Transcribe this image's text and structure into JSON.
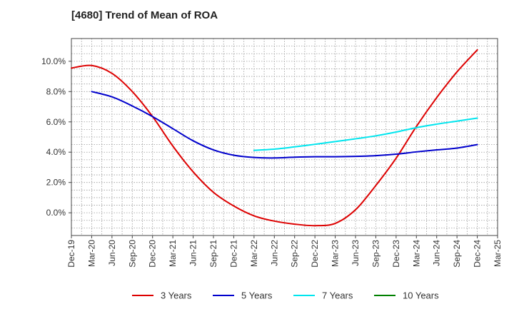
{
  "chart_data": {
    "type": "line",
    "title": "[4680]  Trend of Mean of ROA",
    "xlabel": "",
    "ylabel": "",
    "ylim": [
      -1.5,
      11.5
    ],
    "yticks": [
      0,
      2,
      4,
      6,
      8,
      10
    ],
    "ytick_labels": [
      "0.0%",
      "2.0%",
      "4.0%",
      "6.0%",
      "8.0%",
      "10.0%"
    ],
    "categories": [
      "Dec-19",
      "Mar-20",
      "Jun-20",
      "Sep-20",
      "Dec-20",
      "Mar-21",
      "Jun-21",
      "Sep-21",
      "Dec-21",
      "Mar-22",
      "Jun-22",
      "Sep-22",
      "Dec-22",
      "Mar-23",
      "Jun-23",
      "Sep-23",
      "Dec-23",
      "Mar-24",
      "Jun-24",
      "Sep-24",
      "Dec-24",
      "Mar-25"
    ],
    "grid": true,
    "legend_position": "bottom",
    "series": [
      {
        "name": "3 Years",
        "color": "#dd0000",
        "values": [
          9.55,
          9.72,
          9.2,
          8.0,
          6.35,
          4.4,
          2.7,
          1.35,
          0.45,
          -0.2,
          -0.55,
          -0.75,
          -0.85,
          -0.7,
          0.2,
          1.8,
          3.6,
          5.7,
          7.6,
          9.3,
          10.75,
          null
        ]
      },
      {
        "name": "5 Years",
        "color": "#0000cc",
        "values": [
          null,
          8.0,
          7.65,
          7.05,
          6.35,
          5.55,
          4.75,
          4.15,
          3.8,
          3.65,
          3.62,
          3.67,
          3.7,
          3.7,
          3.72,
          3.77,
          3.87,
          4.02,
          4.15,
          4.27,
          4.5,
          null
        ]
      },
      {
        "name": "7 Years",
        "color": "#00e5ee",
        "values": [
          null,
          null,
          null,
          null,
          null,
          null,
          null,
          null,
          null,
          4.12,
          4.2,
          4.35,
          4.52,
          4.7,
          4.88,
          5.08,
          5.33,
          5.62,
          5.85,
          6.05,
          6.25,
          null
        ]
      },
      {
        "name": "10 Years",
        "color": "#008000",
        "values": [
          null,
          null,
          null,
          null,
          null,
          null,
          null,
          null,
          null,
          null,
          null,
          null,
          null,
          null,
          null,
          null,
          null,
          null,
          null,
          null,
          null,
          null
        ]
      }
    ]
  }
}
